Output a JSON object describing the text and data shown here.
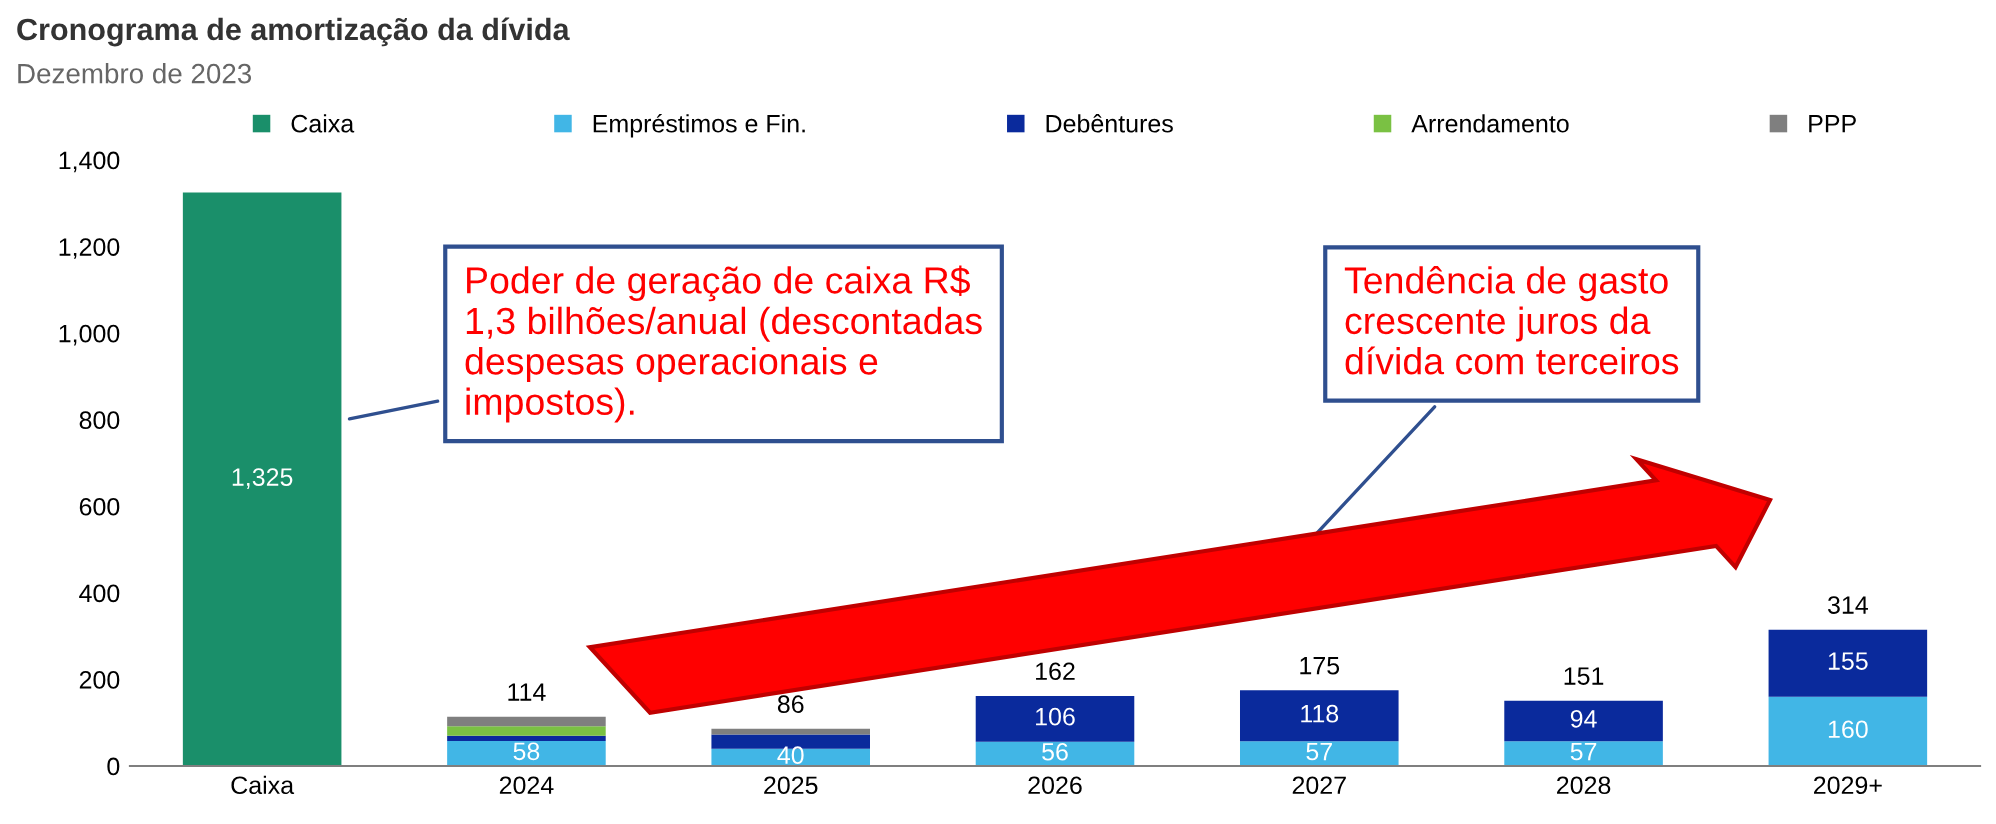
{
  "chart_data": {
    "type": "bar",
    "stacked": true,
    "title": "Cronograma de amortização da dívida",
    "subtitle": "Dezembro de 2023",
    "categories": [
      "Caixa",
      "2024",
      "2025",
      "2026",
      "2027",
      "2028",
      "2029+"
    ],
    "series": [
      {
        "name": "Caixa",
        "color": "#1a8f6a",
        "values": [
          1325,
          null,
          null,
          null,
          null,
          null,
          null
        ],
        "value_labels": [
          "1,325",
          null,
          null,
          null,
          null,
          null,
          null
        ]
      },
      {
        "name": "Empréstimos e Fin.",
        "color": "#41b6e6",
        "values": [
          null,
          58,
          40,
          56,
          57,
          57,
          160
        ],
        "value_labels": [
          null,
          "58",
          "40",
          "56",
          "57",
          "57",
          "160"
        ]
      },
      {
        "name": "Debêntures",
        "color": "#0a2a9c",
        "values": [
          null,
          12,
          33,
          106,
          118,
          94,
          155
        ],
        "value_labels": [
          null,
          null,
          null,
          "106",
          "118",
          "94",
          "155"
        ]
      },
      {
        "name": "Arrendamento",
        "color": "#7ac143",
        "values": [
          null,
          22,
          null,
          null,
          null,
          null,
          null
        ]
      },
      {
        "name": "PPP",
        "color": "#7f7f7f",
        "values": [
          null,
          22,
          13,
          null,
          null,
          null,
          null
        ]
      }
    ],
    "totals": [
      null,
      "114",
      "86",
      "162",
      "175",
      "151",
      "314"
    ],
    "ylim": [
      0,
      1400
    ],
    "yticks": [
      0,
      {
        "value": 200,
        "label": "200"
      },
      {
        "value": 400,
        "label": "400"
      },
      {
        "value": 600,
        "label": "600"
      },
      {
        "value": 800,
        "label": "800"
      },
      {
        "value": 1000,
        "label": "1,000"
      },
      {
        "value": 1200,
        "label": "1,200"
      },
      {
        "value": 1400,
        "label": "1,400"
      }
    ],
    "legend": "top",
    "grid": false,
    "annotations": [
      "Poder de geração de caixa R$\n1,3 bilhões/anual (descontadas\ndespesas operacionais e\nimpostos).",
      "Tendência de gasto\ncrescente juros da\ndívida com terceiros"
    ]
  }
}
